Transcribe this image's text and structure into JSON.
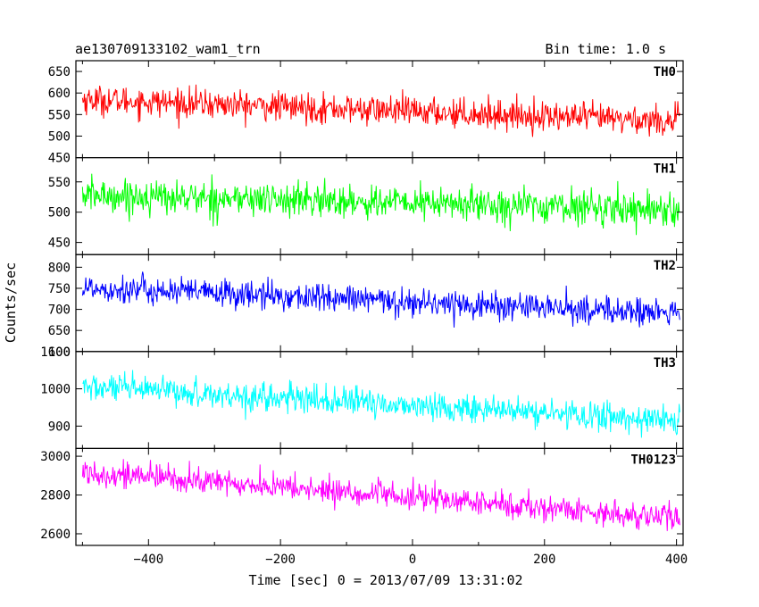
{
  "header": {
    "title": "ae130709133102_wam1_trn",
    "bin_time": "Bin time: 1.0 s"
  },
  "axes": {
    "xlabel": "Time [sec] 0 = 2013/07/09 13:31:02",
    "ylabel": "Counts/sec",
    "xlim": [
      -510,
      410
    ],
    "xticks": [
      -400,
      -200,
      0,
      200,
      400
    ],
    "xtick_labels": [
      "−400",
      "−200",
      "0",
      "200",
      "400"
    ]
  },
  "chart_data": [
    {
      "type": "line",
      "name": "TH0",
      "color": "#ff0000",
      "ylim": [
        450,
        675
      ],
      "yticks": [
        450,
        500,
        550,
        600,
        650
      ],
      "trend": [
        [
          -500,
          585
        ],
        [
          400,
          535
        ]
      ],
      "amplitude": 34,
      "x_range": [
        -500,
        405
      ]
    },
    {
      "type": "line",
      "name": "TH1",
      "color": "#00ff00",
      "ylim": [
        430,
        590
      ],
      "yticks": [
        450,
        500,
        550
      ],
      "trend": [
        [
          -500,
          528
        ],
        [
          400,
          505
        ]
      ],
      "amplitude": 28,
      "x_range": [
        -500,
        405
      ]
    },
    {
      "type": "line",
      "name": "TH2",
      "color": "#0000ff",
      "ylim": [
        600,
        830
      ],
      "yticks": [
        600,
        650,
        700,
        750,
        800
      ],
      "trend": [
        [
          -500,
          752
        ],
        [
          400,
          690
        ]
      ],
      "amplitude": 34,
      "x_range": [
        -500,
        405
      ]
    },
    {
      "type": "line",
      "name": "TH3",
      "color": "#00ffff",
      "ylim": [
        840,
        1100
      ],
      "yticks": [
        900,
        1000,
        1100
      ],
      "trend": [
        [
          -500,
          1005
        ],
        [
          400,
          915
        ]
      ],
      "amplitude": 38,
      "x_range": [
        -500,
        405
      ]
    },
    {
      "type": "line",
      "name": "TH0123",
      "color": "#ff00ff",
      "ylim": [
        2540,
        3040
      ],
      "yticks": [
        2600,
        2800,
        3000
      ],
      "trend": [
        [
          -500,
          2920
        ],
        [
          400,
          2680
        ]
      ],
      "amplitude": 68,
      "x_range": [
        -500,
        405
      ]
    }
  ]
}
